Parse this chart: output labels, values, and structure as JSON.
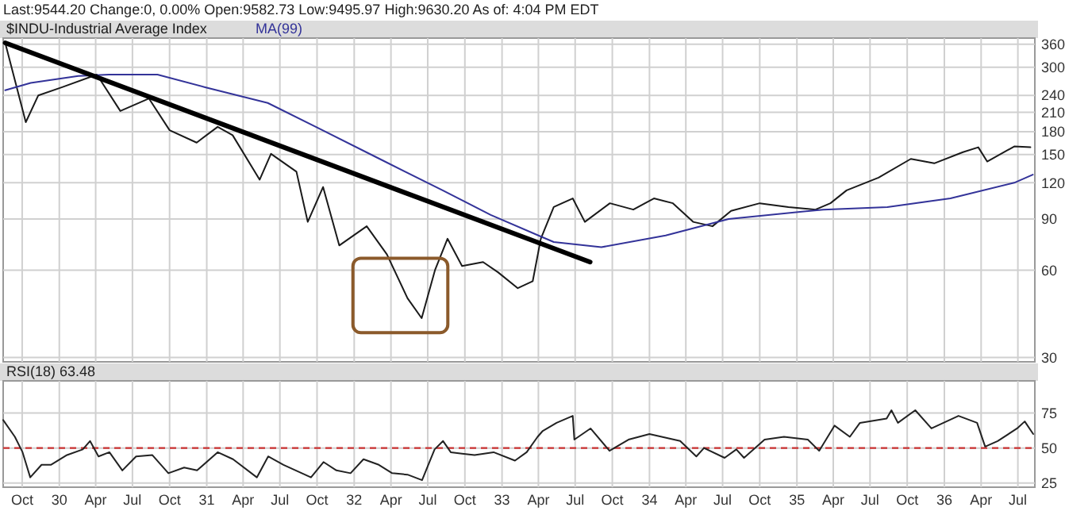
{
  "chart_data": [
    {
      "type": "line",
      "log": "y",
      "grid": true,
      "legend": "top left",
      "tick_labels": "y",
      "annotations": [
        "Last:9544.20 Change:0, 0.00% Open:9582.73 Low:9495.97 High:9630.20 As of: 4:04 PM EDT"
      ],
      "xlim": [
        "1929-08-15",
        "1936-08-12"
      ],
      "xticks": [
        {
          "value": "1929-10-01",
          "label": null
        },
        {
          "value": "1930-01-01",
          "label": null
        },
        {
          "value": "1930-04-01",
          "label": null
        },
        {
          "value": "1930-07-01",
          "label": null
        },
        {
          "value": "1930-10-01",
          "label": null
        },
        {
          "value": "1931-01-01",
          "label": null
        },
        {
          "value": "1931-04-01",
          "label": null
        },
        {
          "value": "1931-07-01",
          "label": null
        },
        {
          "value": "1931-10-01",
          "label": null
        },
        {
          "value": "1932-01-01",
          "label": null
        },
        {
          "value": "1932-04-01",
          "label": null
        },
        {
          "value": "1932-07-01",
          "label": null
        },
        {
          "value": "1932-10-01",
          "label": null
        },
        {
          "value": "1933-01-01",
          "label": null
        },
        {
          "value": "1933-04-01",
          "label": null
        },
        {
          "value": "1933-07-01",
          "label": null
        },
        {
          "value": "1933-10-01",
          "label": null
        },
        {
          "value": "1934-01-01",
          "label": null
        },
        {
          "value": "1934-04-01",
          "label": null
        },
        {
          "value": "1934-07-01",
          "label": null
        },
        {
          "value": "1934-10-01",
          "label": null
        },
        {
          "value": "1935-01-01",
          "label": null
        },
        {
          "value": "1935-04-01",
          "label": null
        },
        {
          "value": "1935-07-01",
          "label": null
        },
        {
          "value": "1935-10-01",
          "label": null
        },
        {
          "value": "1936-01-01",
          "label": null
        },
        {
          "value": "1936-04-01",
          "label": null
        },
        {
          "value": "1936-07-01",
          "label": null
        }
      ],
      "ylim": [
        29,
        378
      ],
      "yticks": [
        30,
        60,
        90,
        120,
        150,
        180,
        210,
        240,
        300,
        360
      ],
      "series": [
        {
          "name": "$INDU-Industrial Average Index",
          "color": "#1a1a1a",
          "x": [
            "1929-08-20",
            "1929-10-10",
            "1929-11-10",
            "1930-01-08",
            "1930-04-04",
            "1930-06-01",
            "1930-08-11",
            "1930-10-01",
            "1930-12-07",
            "1931-01-28",
            "1931-03-06",
            "1931-05-12",
            "1931-06-09",
            "1931-08-11",
            "1931-09-08",
            "1931-10-16",
            "1931-11-25",
            "1932-02-01",
            "1932-03-22",
            "1932-05-12",
            "1932-06-16",
            "1932-07-19",
            "1932-08-19",
            "1932-09-24",
            "1932-11-15",
            "1932-12-22",
            "1933-02-09",
            "1933-03-18",
            "1933-04-07",
            "1933-05-09",
            "1933-06-25",
            "1933-07-25",
            "1933-09-25",
            "1933-11-22",
            "1934-01-12",
            "1934-02-28",
            "1934-04-19",
            "1934-06-06",
            "1934-07-22",
            "1934-10-01",
            "1934-12-11",
            "1935-02-16",
            "1935-03-25",
            "1935-05-04",
            "1935-07-22",
            "1935-10-10",
            "1935-12-07",
            "1936-02-16",
            "1936-03-25",
            "1936-04-16",
            "1936-06-22",
            "1936-08-01"
          ],
          "values": [
            364,
            194,
            240,
            256,
            283,
            212,
            234,
            182,
            165,
            187,
            175,
            123,
            151,
            131,
            88,
            116,
            73,
            85,
            68,
            48,
            41,
            60,
            77,
            62,
            64,
            59,
            52,
            55,
            77,
            99,
            106,
            88,
            102,
            97,
            106,
            102,
            88,
            85,
            96,
            102,
            99,
            97,
            102,
            113,
            125,
            145,
            140,
            153,
            159,
            142,
            160,
            159
          ]
        },
        {
          "name": "MA(99)",
          "color": "#333399",
          "x": [
            "1929-08-20",
            "1929-10-22",
            "1930-02-17",
            "1930-05-04",
            "1930-09-01",
            "1930-12-28",
            "1931-06-01",
            "1931-09-28",
            "1932-03-04",
            "1932-08-07",
            "1932-12-04",
            "1933-04-01",
            "1933-05-09",
            "1933-09-04",
            "1934-02-10",
            "1934-07-16",
            "1935-03-07",
            "1935-08-13",
            "1936-01-16",
            "1936-06-22",
            "1936-08-07"
          ],
          "values": [
            250,
            265,
            280,
            283,
            283,
            256,
            226,
            187,
            145,
            113,
            93,
            79,
            75,
            72,
            79,
            90,
            97,
            99,
            106,
            120,
            128
          ]
        },
        {
          "color": "#000000",
          "x": [
            "1929-08-20",
            "1933-08-07"
          ],
          "values": [
            364,
            64
          ]
        }
      ]
    },
    {
      "type": "line",
      "grid": true,
      "legend": "top left",
      "xlim": [
        "1929-08-15",
        "1936-08-12"
      ],
      "xticks": [
        {
          "value": "1929-10-01",
          "label": "Oct"
        },
        {
          "value": "1930-01-01",
          "label": "30"
        },
        {
          "value": "1930-04-01",
          "label": "Apr"
        },
        {
          "value": "1930-07-01",
          "label": "Jul"
        },
        {
          "value": "1930-10-01",
          "label": "Oct"
        },
        {
          "value": "1931-01-01",
          "label": "31"
        },
        {
          "value": "1931-04-01",
          "label": "Apr"
        },
        {
          "value": "1931-07-01",
          "label": "Jul"
        },
        {
          "value": "1931-10-01",
          "label": "Oct"
        },
        {
          "value": "1932-01-01",
          "label": "32"
        },
        {
          "value": "1932-04-01",
          "label": "Apr"
        },
        {
          "value": "1932-07-01",
          "label": "Jul"
        },
        {
          "value": "1932-10-01",
          "label": "Oct"
        },
        {
          "value": "1933-01-01",
          "label": "33"
        },
        {
          "value": "1933-04-01",
          "label": "Apr"
        },
        {
          "value": "1933-07-01",
          "label": "Jul"
        },
        {
          "value": "1933-10-01",
          "label": "Oct"
        },
        {
          "value": "1934-01-01",
          "label": "34"
        },
        {
          "value": "1934-04-01",
          "label": "Apr"
        },
        {
          "value": "1934-07-01",
          "label": "Jul"
        },
        {
          "value": "1934-10-01",
          "label": "Oct"
        },
        {
          "value": "1935-01-01",
          "label": "35"
        },
        {
          "value": "1935-04-01",
          "label": "Apr"
        },
        {
          "value": "1935-07-01",
          "label": "Jul"
        },
        {
          "value": "1935-10-01",
          "label": "Oct"
        },
        {
          "value": "1936-01-01",
          "label": "36"
        },
        {
          "value": "1936-04-01",
          "label": "Apr"
        },
        {
          "value": "1936-07-01",
          "label": "Jul"
        }
      ],
      "ylim": [
        22,
        98
      ],
      "yticks": [
        25,
        50,
        75
      ],
      "ref_lines": [
        {
          "axis": "y",
          "value": 50,
          "color": "#cc3333",
          "line_style": "dashed"
        }
      ],
      "series": [
        {
          "name": "RSI(18) 63.48",
          "color": "#222222",
          "x": [
            "1929-08-15",
            "1929-09-13",
            "1929-10-02",
            "1929-10-21",
            "1929-11-18",
            "1929-12-11",
            "1930-01-20",
            "1930-02-28",
            "1930-03-18",
            "1930-04-08",
            "1930-05-05",
            "1930-06-06",
            "1930-07-10",
            "1930-08-19",
            "1930-09-28",
            "1930-11-06",
            "1930-12-08",
            "1931-01-28",
            "1931-03-07",
            "1931-05-05",
            "1931-06-02",
            "1931-07-10",
            "1931-09-16",
            "1931-10-17",
            "1931-11-18",
            "1931-12-23",
            "1932-01-24",
            "1932-03-02",
            "1932-04-04",
            "1932-05-12",
            "1932-06-17",
            "1932-07-18",
            "1932-08-08",
            "1932-08-27",
            "1932-09-24",
            "1932-10-25",
            "1932-12-11",
            "1933-02-02",
            "1933-03-03",
            "1933-03-30",
            "1933-04-11",
            "1933-05-16",
            "1933-06-25",
            "1933-06-29",
            "1933-08-08",
            "1933-09-24",
            "1933-11-10",
            "1934-01-01",
            "1934-03-18",
            "1934-04-27",
            "1934-05-16",
            "1934-07-06",
            "1934-08-04",
            "1934-08-23",
            "1934-10-13",
            "1934-11-30",
            "1935-01-28",
            "1935-02-25",
            "1935-04-04",
            "1935-05-12",
            "1935-06-06",
            "1935-08-11",
            "1935-08-23",
            "1935-09-08",
            "1935-10-21",
            "1935-11-30",
            "1936-02-05",
            "1936-03-22",
            "1936-04-11",
            "1936-05-12",
            "1936-06-29",
            "1936-07-18",
            "1936-08-08"
          ],
          "values": [
            70,
            58,
            47,
            29,
            38,
            38,
            45,
            49,
            55,
            44,
            47,
            34,
            44,
            45,
            32,
            36,
            34,
            47,
            42,
            29,
            44,
            38,
            29,
            40,
            34,
            32,
            42,
            38,
            32,
            31,
            27,
            49,
            55,
            47,
            46,
            45,
            47,
            41,
            47,
            58,
            62,
            68,
            73,
            56,
            64,
            48,
            56,
            60,
            55,
            44,
            50,
            43,
            49,
            43,
            56,
            58,
            56,
            48,
            66,
            58,
            68,
            71,
            77,
            68,
            77,
            64,
            73,
            68,
            51,
            55,
            64,
            69,
            60
          ]
        }
      ]
    }
  ]
}
